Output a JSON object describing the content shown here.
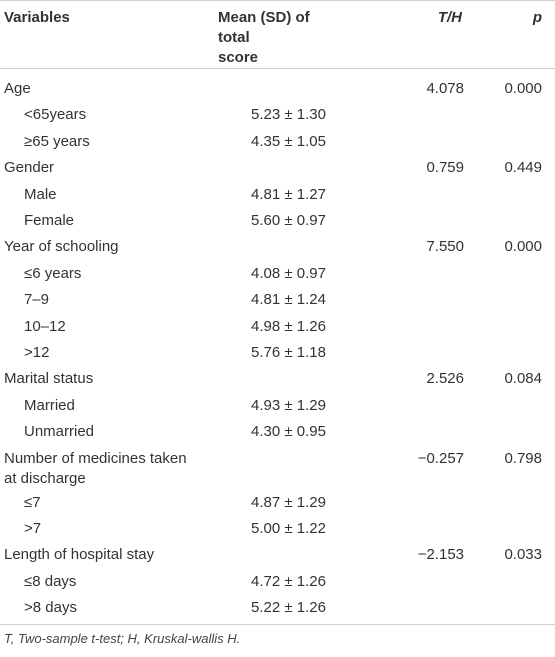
{
  "header": {
    "variables": "Variables",
    "mean_line1": "Mean (SD) of total",
    "mean_line2": "score",
    "th": "T/H",
    "p": "p"
  },
  "rows": [
    {
      "label": "Age",
      "mean": "",
      "t": "4.078",
      "p": "0.000",
      "sub": false
    },
    {
      "label": "<65years",
      "mean": "5.23 ± 1.30",
      "t": "",
      "p": "",
      "sub": true
    },
    {
      "label": "≥65 years",
      "mean": "4.35 ± 1.05",
      "t": "",
      "p": "",
      "sub": true
    },
    {
      "label": "Gender",
      "mean": "",
      "t": "0.759",
      "p": "0.449",
      "sub": false
    },
    {
      "label": "Male",
      "mean": "4.81 ± 1.27",
      "t": "",
      "p": "",
      "sub": true
    },
    {
      "label": "Female",
      "mean": "5.60 ± 0.97",
      "t": "",
      "p": "",
      "sub": true
    },
    {
      "label": "Year of schooling",
      "mean": "",
      "t": "7.550",
      "p": "0.000",
      "sub": false
    },
    {
      "label": "≤6 years",
      "mean": "4.08 ± 0.97",
      "t": "",
      "p": "",
      "sub": true
    },
    {
      "label": "7–9",
      "mean": "4.81 ± 1.24",
      "t": "",
      "p": "",
      "sub": true
    },
    {
      "label": "10–12",
      "mean": "4.98 ± 1.26",
      "t": "",
      "p": "",
      "sub": true
    },
    {
      "label": ">12",
      "mean": "5.76 ± 1.18",
      "t": "",
      "p": "",
      "sub": true
    },
    {
      "label": "Marital status",
      "mean": "",
      "t": "2.526",
      "p": "0.084",
      "sub": false
    },
    {
      "label": "Married",
      "mean": "4.93 ± 1.29",
      "t": "",
      "p": "",
      "sub": true
    },
    {
      "label": "Unmarried",
      "mean": "4.30 ± 0.95",
      "t": "",
      "p": "",
      "sub": true
    },
    {
      "label": "Number of medicines taken at discharge",
      "mean": "",
      "t": "−0.257",
      "p": "0.798",
      "sub": false,
      "tall": true
    },
    {
      "label": "≤7",
      "mean": "4.87 ± 1.29",
      "t": "",
      "p": "",
      "sub": true
    },
    {
      "label": ">7",
      "mean": "5.00 ± 1.22",
      "t": "",
      "p": "",
      "sub": true
    },
    {
      "label": "Length of hospital stay",
      "mean": "",
      "t": "−2.153",
      "p": "0.033",
      "sub": false
    },
    {
      "label": "≤8 days",
      "mean": "4.72 ± 1.26",
      "t": "",
      "p": "",
      "sub": true
    },
    {
      "label": ">8 days",
      "mean": "5.22 ± 1.26",
      "t": "",
      "p": "",
      "sub": true
    }
  ],
  "footnote": "T, Two-sample t-test; H, Kruskal-wallis H."
}
